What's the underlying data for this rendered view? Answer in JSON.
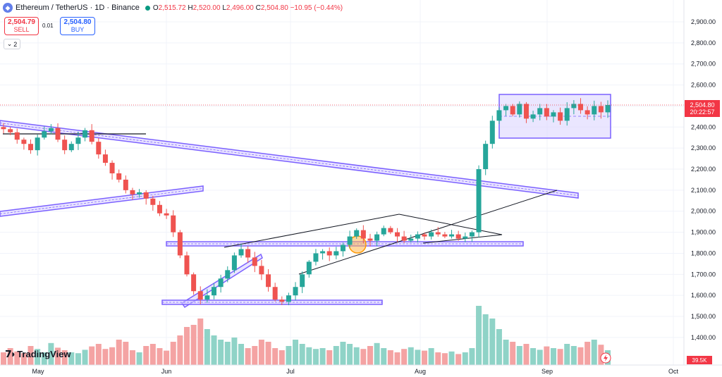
{
  "header": {
    "symbol": "Ethereum / TetherUS · 1D · Binance",
    "open_label": "O",
    "open": "2,515.72",
    "high_label": "H",
    "high": "2,520.00",
    "low_label": "L",
    "low": "2,496.00",
    "close_label": "C",
    "close": "2,504.80",
    "change": "−10.95 (−0.44%)"
  },
  "trade": {
    "sell_price": "2,504.79",
    "sell_label": "SELL",
    "spread": "0.01",
    "buy_price": "2,504.80",
    "buy_label": "BUY"
  },
  "indicators_toggle": "2",
  "branding": {
    "logo_text": "TradingView"
  },
  "colors": {
    "up": "#26a69a",
    "down": "#ef5350",
    "vol_up": "#8fd3c7",
    "vol_down": "#f4a3a3",
    "channel": "#7b61ff",
    "price_tag": "#f23645"
  },
  "chart_data": {
    "type": "candlestick",
    "symbol": "ETHUSDT",
    "interval": "1D",
    "x_ticks": [
      "May",
      "Jun",
      "Jul",
      "Aug",
      "Sep",
      "Oct"
    ],
    "y_ticks": [
      "2,900.00",
      "2,800.00",
      "2,700.00",
      "2,600.00",
      "2,500.00",
      "2,400.00",
      "2,300.00",
      "2,200.00",
      "2,100.00",
      "2,000.00",
      "1,900.00",
      "1,800.00",
      "1,700.00",
      "1,600.00",
      "1,500.00",
      "1,400.00"
    ],
    "y_range": [
      1370,
      2960
    ],
    "last_price": "2,504.80",
    "countdown": "20:22:57",
    "volume_label": "39.5K",
    "close_path": [
      2390,
      2375,
      2340,
      2320,
      2290,
      2350,
      2380,
      2395,
      2340,
      2290,
      2320,
      2350,
      2385,
      2330,
      2270,
      2230,
      2180,
      2150,
      2100,
      2080,
      2090,
      2060,
      2030,
      1990,
      1980,
      1900,
      1790,
      1700,
      1620,
      1580,
      1600,
      1640,
      1680,
      1720,
      1790,
      1820,
      1780,
      1740,
      1700,
      1640,
      1580,
      1570,
      1600,
      1640,
      1700,
      1760,
      1800,
      1810,
      1790,
      1810,
      1840,
      1880,
      1910,
      1870,
      1860,
      1890,
      1920,
      1900,
      1880,
      1860,
      1870,
      1890,
      1880,
      1900,
      1890,
      1880,
      1890,
      1870,
      1880,
      1900,
      2200,
      2320,
      2430,
      2480,
      2500,
      2460,
      2510,
      2440,
      2460,
      2490,
      2450,
      2470,
      2430,
      2490,
      2510,
      2480,
      2460,
      2500,
      2470,
      2505
    ],
    "volume_path": [
      30,
      40,
      32,
      28,
      45,
      38,
      30,
      52,
      41,
      35,
      30,
      28,
      36,
      44,
      50,
      38,
      42,
      60,
      55,
      35,
      30,
      45,
      50,
      40,
      34,
      55,
      70,
      90,
      95,
      110,
      85,
      70,
      60,
      55,
      65,
      50,
      40,
      45,
      60,
      55,
      40,
      35,
      45,
      60,
      50,
      42,
      38,
      40,
      35,
      45,
      55,
      50,
      42,
      38,
      45,
      52,
      40,
      35,
      30,
      38,
      42,
      36,
      34,
      40,
      30,
      28,
      32,
      26,
      30,
      40,
      140,
      120,
      110,
      85,
      60,
      55,
      45,
      50,
      40,
      36,
      44,
      40,
      38,
      50,
      45,
      42,
      55,
      60,
      48,
      35
    ]
  }
}
